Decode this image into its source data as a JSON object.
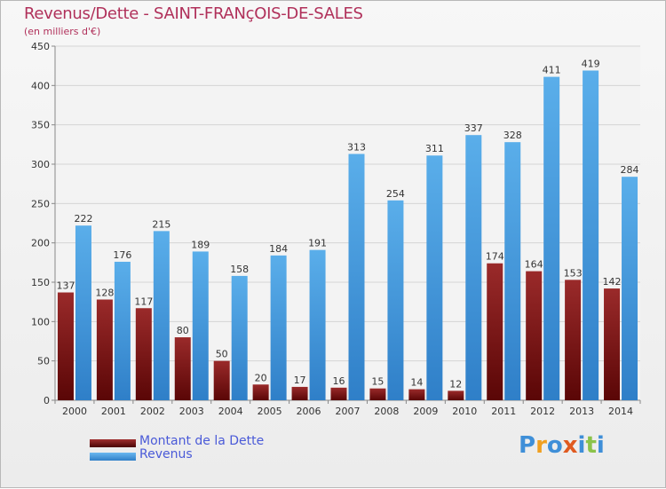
{
  "chart_data": {
    "type": "bar",
    "title": "Revenus/Dette - SAINT-FRANçOIS-DE-SALES",
    "subtitle": "(en milliers d'€)",
    "categories": [
      "2000",
      "2001",
      "2002",
      "2003",
      "2004",
      "2005",
      "2006",
      "2007",
      "2008",
      "2009",
      "2010",
      "2011",
      "2012",
      "2013",
      "2014"
    ],
    "series": [
      {
        "name": "Montant de la Dette",
        "color": "#7a1010",
        "values": [
          137,
          128,
          117,
          80,
          50,
          20,
          17,
          16,
          15,
          14,
          12,
          174,
          164,
          153,
          142
        ]
      },
      {
        "name": "Revenus",
        "color": "#4f9fe0",
        "values": [
          222,
          176,
          215,
          189,
          158,
          184,
          191,
          313,
          254,
          311,
          337,
          328,
          411,
          419,
          284
        ]
      }
    ],
    "ylim": [
      0,
      450
    ],
    "yticks": [
      0,
      50,
      100,
      150,
      200,
      250,
      300,
      350,
      400,
      450
    ],
    "grid": true,
    "legend_position": "bottom-left"
  },
  "logo": {
    "text": "Proxiti",
    "letters": [
      {
        "ch": "P",
        "color": "#3f8fd8"
      },
      {
        "ch": "r",
        "color": "#f0a020"
      },
      {
        "ch": "o",
        "color": "#3f8fd8"
      },
      {
        "ch": "x",
        "color": "#e05a20"
      },
      {
        "ch": "i",
        "color": "#3f8fd8"
      },
      {
        "ch": "t",
        "color": "#8bc34a"
      },
      {
        "ch": "i",
        "color": "#3f8fd8"
      }
    ]
  }
}
